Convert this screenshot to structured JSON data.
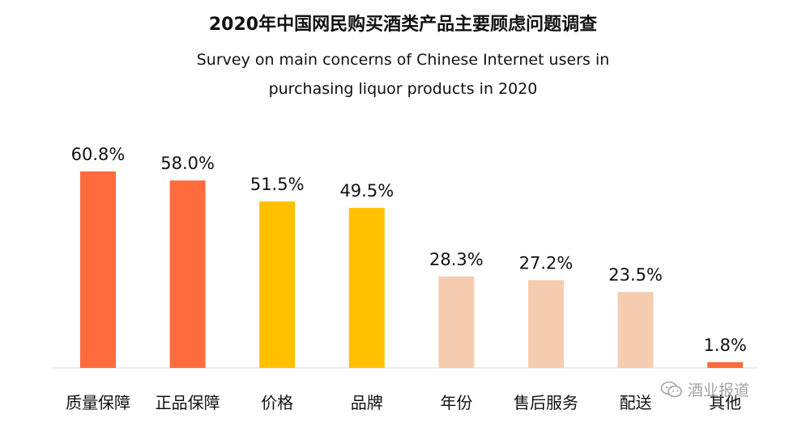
{
  "chart_data": {
    "type": "bar",
    "title": "2020年中国网民购买酒类产品主要顾虑问题调查",
    "subtitle": "Survey on main concerns of Chinese Internet users in purchasing liquor products in 2020",
    "categories": [
      "质量保障",
      "正品保障",
      "价格",
      "品牌",
      "年份",
      "售后服务",
      "配送",
      "其他"
    ],
    "values": [
      60.8,
      58.0,
      51.5,
      49.5,
      28.3,
      27.2,
      23.5,
      1.8
    ],
    "value_labels": [
      "60.8%",
      "58.0%",
      "51.5%",
      "49.5%",
      "28.3%",
      "27.2%",
      "23.5%",
      "1.8%"
    ],
    "colors": [
      "#ff6b3d",
      "#ff6b3d",
      "#ffc000",
      "#ffc000",
      "#f6cdb0",
      "#f6cdb0",
      "#f6cdb0",
      "#ff6b3d"
    ],
    "grid": false,
    "legend": "none"
  },
  "watermark": {
    "text": "酒业报道",
    "icon": "wechat-icon"
  }
}
